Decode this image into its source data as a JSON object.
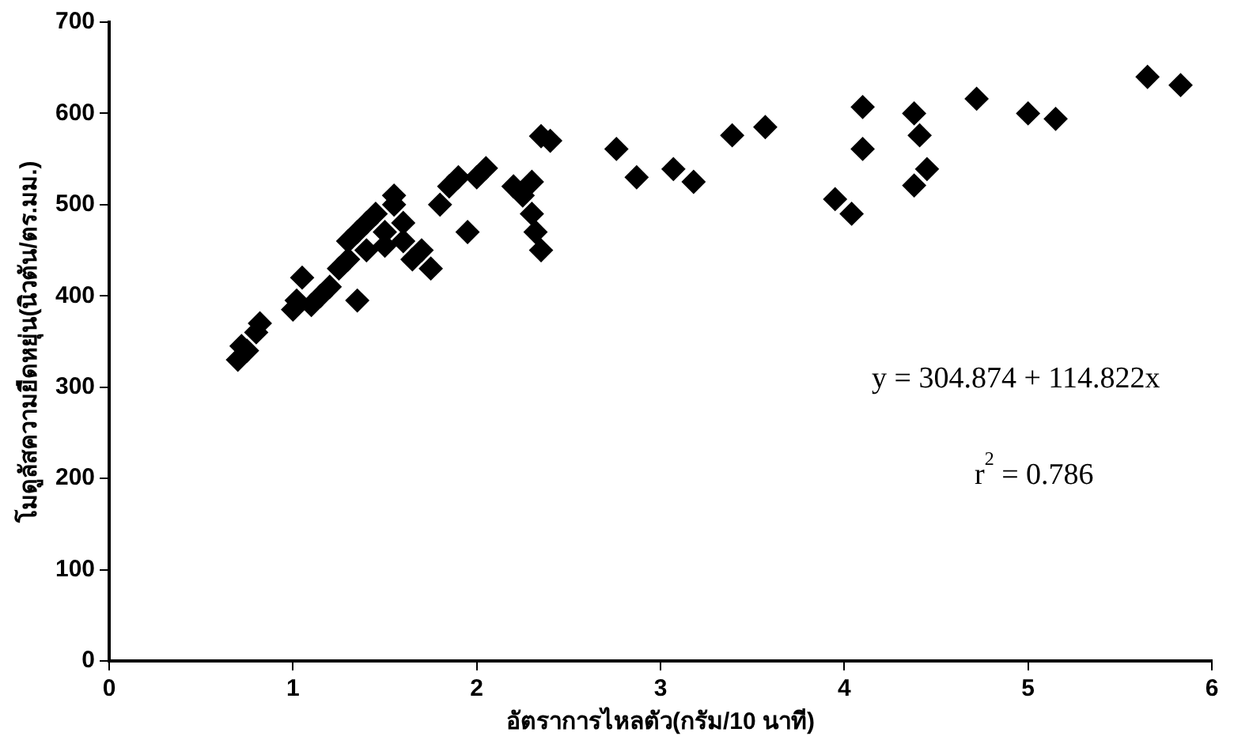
{
  "chart_data": {
    "type": "scatter",
    "xlabel": "อัตราการไหลตัว(กรัม/10 นาที)",
    "ylabel": "โมดูลัสความยืดหยุ่น(นิวตัน/ตร.มม.)",
    "xlim": [
      0,
      6
    ],
    "xticks": [
      0,
      1,
      2,
      3,
      4,
      5,
      6
    ],
    "ylim": [
      0,
      700
    ],
    "yticks": [
      0,
      100,
      200,
      300,
      400,
      500,
      600,
      700
    ],
    "grid": false,
    "legend": false,
    "marker": "diamond",
    "series": [
      {
        "color": "#000000",
        "x": [
          0.7,
          0.72,
          0.75,
          0.8,
          0.82,
          1.0,
          1.02,
          1.05,
          1.1,
          1.15,
          1.2,
          1.25,
          1.3,
          1.3,
          1.35,
          1.35,
          1.4,
          1.4,
          1.45,
          1.5,
          1.5,
          1.55,
          1.55,
          1.6,
          1.6,
          1.65,
          1.7,
          1.75,
          1.8,
          1.85,
          1.9,
          1.95,
          2.0,
          2.05,
          2.2,
          2.25,
          2.3,
          2.3,
          2.32,
          2.35,
          2.35,
          2.4,
          2.76,
          2.87,
          3.07,
          3.18,
          3.39,
          3.57,
          4.1,
          4.1,
          3.95,
          4.04,
          4.38,
          4.41,
          4.45,
          4.38,
          4.72,
          5.0,
          5.15,
          5.65,
          5.83
        ],
        "values": [
          330,
          345,
          340,
          360,
          370,
          385,
          395,
          420,
          390,
          400,
          410,
          430,
          440,
          460,
          395,
          470,
          450,
          480,
          490,
          470,
          455,
          500,
          510,
          480,
          460,
          440,
          450,
          430,
          500,
          520,
          530,
          470,
          530,
          540,
          520,
          510,
          525,
          490,
          470,
          450,
          575,
          570,
          561,
          530,
          539,
          525,
          576,
          585,
          607,
          561,
          506,
          490,
          600,
          576,
          539,
          521,
          616,
          600,
          594,
          640,
          631
        ]
      }
    ],
    "annotations": [
      "y = 304.874 + 114.822x",
      "r$^{2}$ = 0.786"
    ]
  }
}
